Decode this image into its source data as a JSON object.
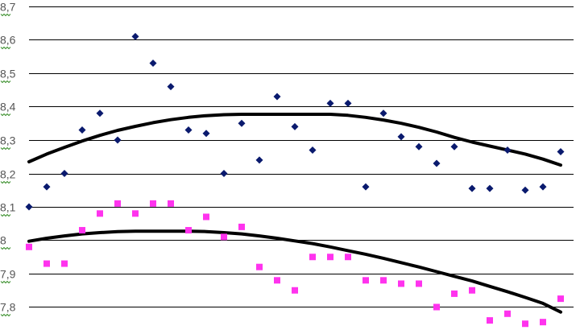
{
  "chart_data": {
    "type": "scatter",
    "title": "",
    "xlabel": "",
    "ylabel": "",
    "ylim": [
      7.75,
      8.7
    ],
    "grid": true,
    "legend": "none",
    "y_ticks": [
      "8,7",
      "8,6",
      "8,5",
      "8,4",
      "8,3",
      "8,2",
      "8,1",
      "8",
      "7,9",
      "7,8"
    ],
    "y_tick_values": [
      8.7,
      8.6,
      8.5,
      8.4,
      8.3,
      8.2,
      8.1,
      8.0,
      7.9,
      7.8
    ],
    "x": [
      1,
      2,
      3,
      4,
      5,
      6,
      7,
      8,
      9,
      10,
      11,
      12,
      13,
      14,
      15,
      16,
      17,
      18,
      19,
      20,
      21,
      22,
      23,
      24,
      25,
      26,
      27,
      28,
      29,
      30,
      31
    ],
    "xlim": [
      1,
      31
    ],
    "series": [
      {
        "marker": "diamond",
        "color": "#0a1a6e",
        "values": [
          8.1,
          8.16,
          8.2,
          8.33,
          8.38,
          8.3,
          8.61,
          8.53,
          8.46,
          8.33,
          8.32,
          8.2,
          8.35,
          8.24,
          8.43,
          8.34,
          8.27,
          8.41,
          8.41,
          8.16,
          8.38,
          8.31,
          8.28,
          8.23,
          8.28,
          8.155,
          8.155,
          8.27,
          8.15,
          8.16,
          8.265
        ],
        "trend": {
          "type": "polynomial",
          "color": "#000000",
          "values": [
            8.235,
            8.258,
            8.278,
            8.297,
            8.314,
            8.329,
            8.341,
            8.352,
            8.361,
            8.368,
            8.373,
            8.376,
            8.377,
            8.377,
            8.377,
            8.377,
            8.377,
            8.377,
            8.374,
            8.368,
            8.36,
            8.35,
            8.338,
            8.324,
            8.308,
            8.294,
            8.282,
            8.27,
            8.258,
            8.243,
            8.225
          ]
        }
      },
      {
        "marker": "square",
        "color": "#ff33ee",
        "values": [
          7.98,
          7.93,
          7.93,
          8.03,
          8.08,
          8.11,
          8.08,
          8.11,
          8.11,
          8.03,
          8.07,
          8.01,
          8.04,
          7.92,
          7.88,
          7.85,
          7.95,
          7.95,
          7.95,
          7.88,
          7.88,
          7.87,
          7.87,
          7.8,
          7.84,
          7.85,
          7.76,
          7.78,
          7.75,
          7.755,
          7.825
        ],
        "trend": {
          "type": "polynomial",
          "color": "#000000",
          "values": [
            7.997,
            8.006,
            8.013,
            8.019,
            8.023,
            8.026,
            8.027,
            8.027,
            8.027,
            8.027,
            8.026,
            8.023,
            8.019,
            8.013,
            8.006,
            7.998,
            7.99,
            7.98,
            7.969,
            7.958,
            7.946,
            7.933,
            7.92,
            7.906,
            7.892,
            7.878,
            7.862,
            7.846,
            7.829,
            7.811,
            7.785
          ]
        }
      }
    ]
  }
}
